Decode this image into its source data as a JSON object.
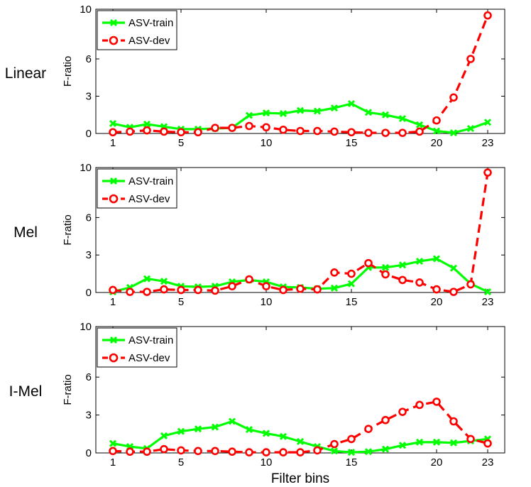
{
  "chart_data": [
    {
      "type": "line",
      "row_label": "Linear",
      "ylabel": "F-ratio",
      "xlim": [
        0,
        24
      ],
      "ylim": [
        0,
        10
      ],
      "yticks": [
        0,
        3,
        6,
        10
      ],
      "xticks": [
        1,
        5,
        10,
        15,
        20,
        23
      ],
      "legend_position": "top-left",
      "x": [
        1,
        2,
        3,
        4,
        5,
        6,
        7,
        8,
        9,
        10,
        11,
        12,
        13,
        14,
        15,
        16,
        17,
        18,
        19,
        20,
        21,
        22,
        23
      ],
      "series": [
        {
          "name": "ASV-train",
          "color": "#00ff00",
          "marker": "x",
          "values": [
            0.8,
            0.5,
            0.75,
            0.55,
            0.35,
            0.35,
            0.4,
            0.45,
            1.45,
            1.65,
            1.6,
            1.85,
            1.8,
            2.05,
            2.4,
            1.7,
            1.5,
            1.2,
            0.7,
            0.2,
            0.05,
            0.4,
            0.9
          ]
        },
        {
          "name": "ASV-dev",
          "color": "#ff0000",
          "marker": "o",
          "values": [
            0.1,
            0.15,
            0.25,
            0.15,
            0.1,
            0.1,
            0.45,
            0.45,
            0.6,
            0.5,
            0.3,
            0.2,
            0.2,
            0.15,
            0.1,
            0.05,
            0.05,
            0.05,
            0.15,
            1.05,
            2.9,
            6.0,
            9.5
          ]
        }
      ]
    },
    {
      "type": "line",
      "row_label": "Mel",
      "ylabel": "F-ratio",
      "xlim": [
        0,
        24
      ],
      "ylim": [
        0,
        10
      ],
      "yticks": [
        0,
        3,
        6,
        10
      ],
      "xticks": [
        1,
        5,
        10,
        15,
        20,
        23
      ],
      "legend_position": "top-left",
      "x": [
        1,
        2,
        3,
        4,
        5,
        6,
        7,
        8,
        9,
        10,
        11,
        12,
        13,
        14,
        15,
        16,
        17,
        18,
        19,
        20,
        21,
        22,
        23
      ],
      "series": [
        {
          "name": "ASV-train",
          "color": "#00ff00",
          "marker": "x",
          "values": [
            0.05,
            0.4,
            1.1,
            0.9,
            0.5,
            0.45,
            0.5,
            0.85,
            1.0,
            0.85,
            0.45,
            0.4,
            0.3,
            0.35,
            0.7,
            2.0,
            2.0,
            2.2,
            2.5,
            2.7,
            1.95,
            0.7,
            0.05
          ]
        },
        {
          "name": "ASV-dev",
          "color": "#ff0000",
          "marker": "o",
          "values": [
            0.2,
            0.05,
            0.05,
            0.25,
            0.2,
            0.2,
            0.15,
            0.5,
            1.05,
            0.5,
            0.2,
            0.3,
            0.25,
            1.6,
            1.5,
            2.35,
            1.45,
            1.0,
            0.8,
            0.25,
            0.05,
            0.65,
            9.6
          ]
        }
      ]
    },
    {
      "type": "line",
      "row_label": "I-Mel",
      "ylabel": "F-ratio",
      "xlim": [
        0,
        24
      ],
      "ylim": [
        0,
        10
      ],
      "yticks": [
        0,
        3,
        6,
        10
      ],
      "xticks": [
        1,
        5,
        10,
        15,
        20,
        23
      ],
      "xlabel": "Filter bins",
      "legend_position": "top-left",
      "x": [
        1,
        2,
        3,
        4,
        5,
        6,
        7,
        8,
        9,
        10,
        11,
        12,
        13,
        14,
        15,
        16,
        17,
        18,
        19,
        20,
        21,
        22,
        23
      ],
      "series": [
        {
          "name": "ASV-train",
          "color": "#00ff00",
          "marker": "x",
          "values": [
            0.75,
            0.5,
            0.35,
            1.35,
            1.7,
            1.9,
            2.05,
            2.5,
            1.85,
            1.55,
            1.3,
            0.9,
            0.5,
            0.15,
            0.05,
            0.1,
            0.3,
            0.6,
            0.85,
            0.85,
            0.8,
            0.95,
            1.1
          ]
        },
        {
          "name": "ASV-dev",
          "color": "#ff0000",
          "marker": "o",
          "values": [
            0.15,
            0.1,
            0.1,
            0.3,
            0.2,
            0.15,
            0.15,
            0.1,
            0.05,
            0.05,
            0.05,
            0.05,
            0.2,
            0.7,
            1.1,
            1.9,
            2.6,
            3.25,
            3.8,
            4.05,
            2.5,
            1.1,
            0.75
          ]
        }
      ]
    }
  ]
}
